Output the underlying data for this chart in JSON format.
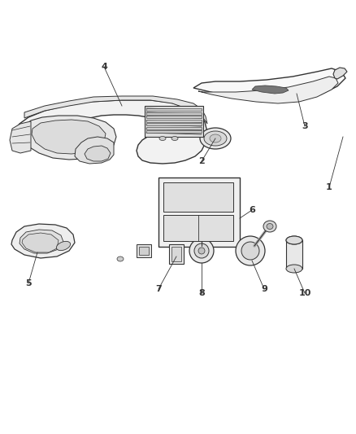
{
  "background_color": "#ffffff",
  "line_color": "#333333",
  "fill_light": "#f5f5f5",
  "fill_mid": "#e8e8e8",
  "fill_dark": "#aaaaaa",
  "figsize": [
    4.38,
    5.33
  ],
  "dpi": 100
}
